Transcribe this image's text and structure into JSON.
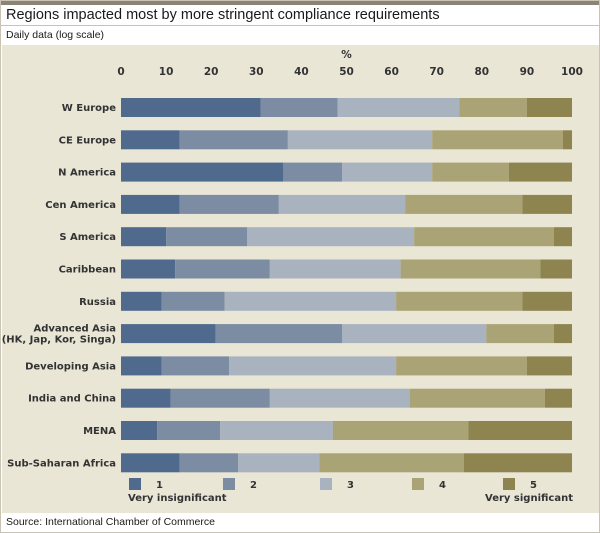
{
  "title": "Regions impacted most by more stringent compliance requirements",
  "subtitle": "Daily data (log scale)",
  "source": "Source: International Chamber of Commerce",
  "chart_data": {
    "type": "bar",
    "orientation": "horizontal",
    "stacked": true,
    "xlabel": "%",
    "xlim": [
      0,
      100
    ],
    "ticks": [
      0,
      10,
      20,
      30,
      40,
      50,
      60,
      70,
      80,
      90,
      100
    ],
    "colors": [
      "#4f6a8c",
      "#7b8ca3",
      "#a9b3bf",
      "#aaa376",
      "#8d8450"
    ],
    "categories": [
      [
        "W Europe"
      ],
      [
        "CE Europe"
      ],
      [
        "N America"
      ],
      [
        "Cen America"
      ],
      [
        "S America"
      ],
      [
        "Caribbean"
      ],
      [
        "Russia"
      ],
      [
        "Advanced Asia",
        "(HK, Jap, Kor, Singa)"
      ],
      [
        "Developing Asia"
      ],
      [
        "India and China"
      ],
      [
        "MENA"
      ],
      [
        "Sub-Saharan Africa"
      ]
    ],
    "series": [
      {
        "name": "1",
        "values": [
          31,
          13,
          36,
          13,
          10,
          12,
          9,
          21,
          9,
          11,
          8,
          13
        ]
      },
      {
        "name": "2",
        "values": [
          17,
          24,
          13,
          22,
          18,
          21,
          14,
          28,
          15,
          22,
          14,
          13
        ]
      },
      {
        "name": "3",
        "values": [
          27,
          32,
          20,
          28,
          37,
          29,
          38,
          32,
          37,
          31,
          25,
          18
        ]
      },
      {
        "name": "4",
        "values": [
          15,
          29,
          17,
          26,
          31,
          31,
          28,
          15,
          29,
          30,
          30,
          32
        ]
      },
      {
        "name": "5",
        "values": [
          10,
          2,
          14,
          11,
          4,
          7,
          11,
          4,
          10,
          6,
          23,
          24
        ]
      }
    ],
    "legend_labels": [
      "Very insignificant",
      "Very significant"
    ]
  }
}
